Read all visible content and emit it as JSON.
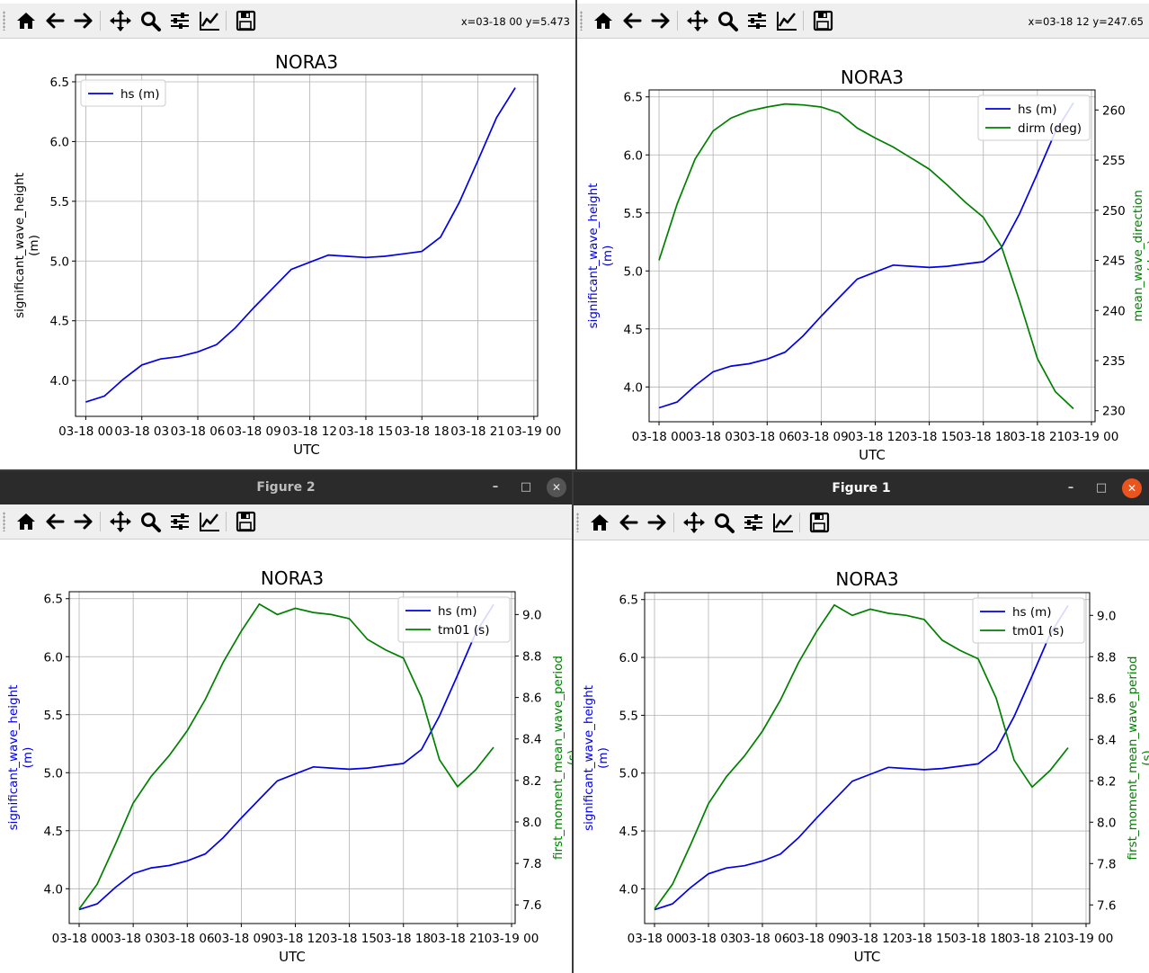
{
  "toolbar": {
    "home": "home-icon",
    "back": "back-arrow-icon",
    "forward": "forward-arrow-icon",
    "pan": "move-icon",
    "zoom": "zoom-icon",
    "subplots": "sliders-icon",
    "edit": "line-chart-icon",
    "save": "save-icon"
  },
  "windows": {
    "top_left": {
      "coords": "x=03-18 00 y=5.473"
    },
    "top_right": {
      "coords": "x=03-18 12 y=247.65"
    },
    "bottom_left": {
      "title": "Figure 2",
      "minimize": "–",
      "maximize": "□",
      "close": "✕"
    },
    "bottom_right": {
      "title": "Figure 1",
      "minimize": "–",
      "maximize": "□",
      "close": "✕"
    }
  },
  "colors": {
    "hs": "#0000e6",
    "second": "#008000",
    "titlebar": "#2b2b2b",
    "close_active": "#e9541f"
  },
  "chart_data": [
    {
      "id": "tl",
      "type": "line",
      "title": "NORA3",
      "xlabel": "UTC",
      "ylabel": "significant_wave_height (m)",
      "x": [
        "03-18 00",
        "03-18 01",
        "03-18 02",
        "03-18 03",
        "03-18 04",
        "03-18 05",
        "03-18 06",
        "03-18 07",
        "03-18 08",
        "03-18 09",
        "03-18 10",
        "03-18 11",
        "03-18 12",
        "03-18 13",
        "03-18 14",
        "03-18 15",
        "03-18 16",
        "03-18 17",
        "03-18 18",
        "03-18 19",
        "03-18 20",
        "03-18 21",
        "03-18 22",
        "03-18 23"
      ],
      "xticks": [
        "03-18 00",
        "03-18 03",
        "03-18 06",
        "03-18 09",
        "03-18 12",
        "03-18 15",
        "03-18 18",
        "03-18 21",
        "03-19 00"
      ],
      "xlim": [
        -0.55,
        24.2
      ],
      "yticks": [
        "4.0",
        "4.5",
        "5.0",
        "5.5",
        "6.0",
        "6.5"
      ],
      "ylim": [
        3.7,
        6.56
      ],
      "legend": "upper left",
      "series": [
        {
          "name": "hs (m)",
          "axis": "left",
          "values": [
            3.82,
            3.87,
            4.01,
            4.13,
            4.18,
            4.2,
            4.24,
            4.3,
            4.44,
            4.61,
            4.77,
            4.93,
            4.99,
            5.05,
            5.04,
            5.03,
            5.04,
            5.06,
            5.08,
            5.2,
            5.49,
            5.84,
            6.2,
            6.45
          ]
        }
      ]
    },
    {
      "id": "tr",
      "type": "line",
      "title": "NORA3",
      "xlabel": "UTC",
      "ylabel": "significant_wave_height (m)",
      "ylabel2": "mean_wave_direction (deg)",
      "x": [
        "03-18 00",
        "03-18 01",
        "03-18 02",
        "03-18 03",
        "03-18 04",
        "03-18 05",
        "03-18 06",
        "03-18 07",
        "03-18 08",
        "03-18 09",
        "03-18 10",
        "03-18 11",
        "03-18 12",
        "03-18 13",
        "03-18 14",
        "03-18 15",
        "03-18 16",
        "03-18 17",
        "03-18 18",
        "03-18 19",
        "03-18 20",
        "03-18 21",
        "03-18 22",
        "03-18 23"
      ],
      "xticks": [
        "03-18 00",
        "03-18 03",
        "03-18 06",
        "03-18 09",
        "03-18 12",
        "03-18 15",
        "03-18 18",
        "03-18 21",
        "03-19 00"
      ],
      "xlim": [
        -0.55,
        24.2
      ],
      "yticks": [
        "4.0",
        "4.5",
        "5.0",
        "5.5",
        "6.0",
        "6.5"
      ],
      "ylim": [
        3.7,
        6.56
      ],
      "y2ticks": [
        "230",
        "235",
        "240",
        "245",
        "250",
        "255",
        "260"
      ],
      "y2lim": [
        228.9,
        262.0
      ],
      "legend": "upper right",
      "series": [
        {
          "name": "hs (m)",
          "axis": "left",
          "values": [
            3.82,
            3.87,
            4.01,
            4.13,
            4.18,
            4.2,
            4.24,
            4.3,
            4.44,
            4.61,
            4.77,
            4.93,
            4.99,
            5.05,
            5.04,
            5.03,
            5.04,
            5.06,
            5.08,
            5.2,
            5.49,
            5.84,
            6.2,
            6.45
          ]
        },
        {
          "name": "dirm (deg)",
          "axis": "right",
          "values": [
            245.0,
            250.6,
            255.1,
            257.9,
            259.2,
            259.9,
            260.3,
            260.6,
            260.5,
            260.3,
            259.7,
            258.2,
            257.2,
            256.3,
            255.2,
            254.1,
            252.5,
            250.8,
            249.3,
            246.4,
            241.0,
            235.2,
            231.9,
            230.2
          ]
        }
      ]
    },
    {
      "id": "bl",
      "type": "line",
      "title": "NORA3",
      "xlabel": "UTC",
      "ylabel": "significant_wave_height (m)",
      "ylabel2": "first_moment_mean_wave_period (s)",
      "x": [
        "03-18 00",
        "03-18 01",
        "03-18 02",
        "03-18 03",
        "03-18 04",
        "03-18 05",
        "03-18 06",
        "03-18 07",
        "03-18 08",
        "03-18 09",
        "03-18 10",
        "03-18 11",
        "03-18 12",
        "03-18 13",
        "03-18 14",
        "03-18 15",
        "03-18 16",
        "03-18 17",
        "03-18 18",
        "03-18 19",
        "03-18 20",
        "03-18 21",
        "03-18 22",
        "03-18 23"
      ],
      "xticks": [
        "03-18 00",
        "03-18 03",
        "03-18 06",
        "03-18 09",
        "03-18 12",
        "03-18 15",
        "03-18 18",
        "03-18 21",
        "03-19 00"
      ],
      "xlim": [
        -0.55,
        24.2
      ],
      "yticks": [
        "4.0",
        "4.5",
        "5.0",
        "5.5",
        "6.0",
        "6.5"
      ],
      "ylim": [
        3.7,
        6.56
      ],
      "y2ticks": [
        "7.6",
        "7.8",
        "8.0",
        "8.2",
        "8.4",
        "8.6",
        "8.8",
        "9.0"
      ],
      "y2lim": [
        7.51,
        9.11
      ],
      "legend": "upper right",
      "series": [
        {
          "name": "hs (m)",
          "axis": "left",
          "values": [
            3.82,
            3.87,
            4.01,
            4.13,
            4.18,
            4.2,
            4.24,
            4.3,
            4.44,
            4.61,
            4.77,
            4.93,
            4.99,
            5.05,
            5.04,
            5.03,
            5.04,
            5.06,
            5.08,
            5.2,
            5.49,
            5.84,
            6.2,
            6.45
          ]
        },
        {
          "name": "tm01 (s)",
          "axis": "right",
          "values": [
            7.58,
            7.7,
            7.89,
            8.09,
            8.22,
            8.32,
            8.44,
            8.59,
            8.77,
            8.92,
            9.05,
            9.0,
            9.03,
            9.01,
            9.0,
            8.98,
            8.88,
            8.83,
            8.79,
            8.6,
            8.3,
            8.17,
            8.25,
            8.36
          ]
        }
      ]
    },
    {
      "id": "br",
      "type": "line",
      "title": "NORA3",
      "xlabel": "UTC",
      "ylabel": "significant_wave_height (m)",
      "ylabel2": "first_moment_mean_wave_period (s)",
      "x": [
        "03-18 00",
        "03-18 01",
        "03-18 02",
        "03-18 03",
        "03-18 04",
        "03-18 05",
        "03-18 06",
        "03-18 07",
        "03-18 08",
        "03-18 09",
        "03-18 10",
        "03-18 11",
        "03-18 12",
        "03-18 13",
        "03-18 14",
        "03-18 15",
        "03-18 16",
        "03-18 17",
        "03-18 18",
        "03-18 19",
        "03-18 20",
        "03-18 21",
        "03-18 22",
        "03-18 23"
      ],
      "xticks": [
        "03-18 00",
        "03-18 03",
        "03-18 06",
        "03-18 09",
        "03-18 12",
        "03-18 15",
        "03-18 18",
        "03-18 21",
        "03-19 00"
      ],
      "xlim": [
        -0.55,
        24.2
      ],
      "yticks": [
        "4.0",
        "4.5",
        "5.0",
        "5.5",
        "6.0",
        "6.5"
      ],
      "ylim": [
        3.7,
        6.56
      ],
      "y2ticks": [
        "7.6",
        "7.8",
        "8.0",
        "8.2",
        "8.4",
        "8.6",
        "8.8",
        "9.0"
      ],
      "y2lim": [
        7.51,
        9.11
      ],
      "legend": "upper right",
      "series": [
        {
          "name": "hs (m)",
          "axis": "left",
          "values": [
            3.82,
            3.87,
            4.01,
            4.13,
            4.18,
            4.2,
            4.24,
            4.3,
            4.44,
            4.61,
            4.77,
            4.93,
            4.99,
            5.05,
            5.04,
            5.03,
            5.04,
            5.06,
            5.08,
            5.2,
            5.49,
            5.84,
            6.2,
            6.45
          ]
        },
        {
          "name": "tm01 (s)",
          "axis": "right",
          "values": [
            7.58,
            7.7,
            7.89,
            8.09,
            8.22,
            8.32,
            8.44,
            8.59,
            8.77,
            8.92,
            9.05,
            9.0,
            9.03,
            9.01,
            9.0,
            8.98,
            8.88,
            8.83,
            8.79,
            8.6,
            8.3,
            8.17,
            8.25,
            8.36
          ]
        }
      ]
    }
  ]
}
